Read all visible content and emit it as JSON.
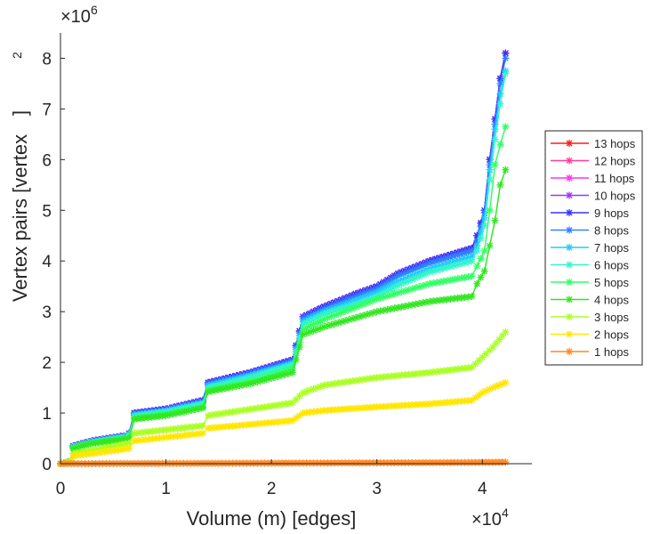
{
  "chart_data": {
    "type": "line",
    "xlabel": "Volume (m) [edges]",
    "ylabel": "Vertex pairs [vertex",
    "ylabel_sup": "2",
    "ylabel_close": "]",
    "x_multiplier": "×10",
    "x_multiplier_exp": "4",
    "y_multiplier": "×10",
    "y_multiplier_exp": "6",
    "xlim": [
      0,
      4.47
    ],
    "ylim": [
      0,
      8.5
    ],
    "xticks": [
      0,
      1,
      2,
      3,
      4
    ],
    "yticks": [
      0,
      1,
      2,
      3,
      4,
      5,
      6,
      7,
      8
    ],
    "legend_position": "right",
    "series": [
      {
        "name": "13 hops",
        "color": "#ff1a1a",
        "points": [
          [
            0,
            0
          ],
          [
            0.1,
            0.05
          ],
          [
            0.12,
            0.35
          ],
          [
            0.3,
            0.45
          ],
          [
            0.6,
            0.55
          ],
          [
            0.65,
            0.6
          ],
          [
            0.7,
            1.0
          ],
          [
            1.0,
            1.08
          ],
          [
            1.35,
            1.25
          ],
          [
            1.4,
            1.6
          ],
          [
            1.8,
            1.8
          ],
          [
            2.2,
            2.05
          ],
          [
            2.3,
            2.9
          ],
          [
            2.5,
            3.1
          ],
          [
            2.8,
            3.35
          ],
          [
            3.0,
            3.5
          ],
          [
            3.2,
            3.75
          ],
          [
            3.5,
            4.0
          ],
          [
            3.9,
            4.25
          ],
          [
            3.95,
            4.5
          ],
          [
            4.02,
            5.0
          ],
          [
            4.07,
            6.0
          ],
          [
            4.12,
            6.8
          ],
          [
            4.17,
            7.6
          ],
          [
            4.22,
            8.1
          ]
        ]
      },
      {
        "name": "12 hops",
        "color": "#ff3d9a",
        "points": [
          [
            0,
            0
          ],
          [
            0.1,
            0.05
          ],
          [
            0.12,
            0.35
          ],
          [
            0.3,
            0.45
          ],
          [
            0.6,
            0.55
          ],
          [
            0.65,
            0.6
          ],
          [
            0.7,
            1.0
          ],
          [
            1.0,
            1.08
          ],
          [
            1.35,
            1.25
          ],
          [
            1.4,
            1.6
          ],
          [
            1.8,
            1.8
          ],
          [
            2.2,
            2.05
          ],
          [
            2.3,
            2.9
          ],
          [
            2.5,
            3.1
          ],
          [
            2.8,
            3.35
          ],
          [
            3.0,
            3.5
          ],
          [
            3.2,
            3.75
          ],
          [
            3.5,
            4.0
          ],
          [
            3.9,
            4.25
          ],
          [
            3.95,
            4.5
          ],
          [
            4.02,
            5.0
          ],
          [
            4.07,
            6.0
          ],
          [
            4.12,
            6.8
          ],
          [
            4.17,
            7.6
          ],
          [
            4.22,
            8.1
          ]
        ]
      },
      {
        "name": "11 hops",
        "color": "#ff33ee",
        "points": [
          [
            0,
            0
          ],
          [
            0.1,
            0.05
          ],
          [
            0.12,
            0.35
          ],
          [
            0.3,
            0.45
          ],
          [
            0.6,
            0.55
          ],
          [
            0.65,
            0.6
          ],
          [
            0.7,
            1.0
          ],
          [
            1.0,
            1.08
          ],
          [
            1.35,
            1.25
          ],
          [
            1.4,
            1.6
          ],
          [
            1.8,
            1.8
          ],
          [
            2.2,
            2.05
          ],
          [
            2.3,
            2.9
          ],
          [
            2.5,
            3.1
          ],
          [
            2.8,
            3.35
          ],
          [
            3.0,
            3.5
          ],
          [
            3.2,
            3.75
          ],
          [
            3.5,
            4.0
          ],
          [
            3.9,
            4.25
          ],
          [
            3.95,
            4.5
          ],
          [
            4.02,
            5.0
          ],
          [
            4.07,
            6.0
          ],
          [
            4.12,
            6.8
          ],
          [
            4.17,
            7.6
          ],
          [
            4.22,
            8.1
          ]
        ]
      },
      {
        "name": "10 hops",
        "color": "#a033ff",
        "points": [
          [
            0,
            0
          ],
          [
            0.1,
            0.05
          ],
          [
            0.12,
            0.35
          ],
          [
            0.3,
            0.45
          ],
          [
            0.6,
            0.55
          ],
          [
            0.65,
            0.6
          ],
          [
            0.7,
            1.0
          ],
          [
            1.0,
            1.08
          ],
          [
            1.35,
            1.25
          ],
          [
            1.4,
            1.6
          ],
          [
            1.8,
            1.8
          ],
          [
            2.2,
            2.05
          ],
          [
            2.3,
            2.9
          ],
          [
            2.5,
            3.1
          ],
          [
            2.8,
            3.35
          ],
          [
            3.0,
            3.5
          ],
          [
            3.2,
            3.75
          ],
          [
            3.5,
            4.0
          ],
          [
            3.9,
            4.25
          ],
          [
            3.95,
            4.5
          ],
          [
            4.02,
            5.0
          ],
          [
            4.07,
            6.0
          ],
          [
            4.12,
            6.8
          ],
          [
            4.17,
            7.6
          ],
          [
            4.22,
            8.1
          ]
        ]
      },
      {
        "name": "9 hops",
        "color": "#3333ff",
        "points": [
          [
            0,
            0
          ],
          [
            0.1,
            0.05
          ],
          [
            0.12,
            0.35
          ],
          [
            0.3,
            0.45
          ],
          [
            0.6,
            0.55
          ],
          [
            0.65,
            0.6
          ],
          [
            0.7,
            1.0
          ],
          [
            1.0,
            1.08
          ],
          [
            1.35,
            1.25
          ],
          [
            1.4,
            1.6
          ],
          [
            1.8,
            1.8
          ],
          [
            2.2,
            2.05
          ],
          [
            2.3,
            2.9
          ],
          [
            2.5,
            3.1
          ],
          [
            2.8,
            3.35
          ],
          [
            3.0,
            3.5
          ],
          [
            3.2,
            3.75
          ],
          [
            3.5,
            4.0
          ],
          [
            3.9,
            4.25
          ],
          [
            3.95,
            4.5
          ],
          [
            4.02,
            5.0
          ],
          [
            4.07,
            6.0
          ],
          [
            4.12,
            6.8
          ],
          [
            4.17,
            7.6
          ],
          [
            4.22,
            8.1
          ]
        ]
      },
      {
        "name": "8 hops",
        "color": "#3380ff",
        "points": [
          [
            0,
            0
          ],
          [
            0.1,
            0.05
          ],
          [
            0.12,
            0.34
          ],
          [
            0.3,
            0.44
          ],
          [
            0.6,
            0.54
          ],
          [
            0.65,
            0.59
          ],
          [
            0.7,
            0.98
          ],
          [
            1.0,
            1.06
          ],
          [
            1.35,
            1.22
          ],
          [
            1.4,
            1.57
          ],
          [
            1.8,
            1.77
          ],
          [
            2.2,
            2.02
          ],
          [
            2.3,
            2.86
          ],
          [
            2.5,
            3.05
          ],
          [
            2.8,
            3.3
          ],
          [
            3.0,
            3.45
          ],
          [
            3.2,
            3.7
          ],
          [
            3.5,
            3.95
          ],
          [
            3.9,
            4.2
          ],
          [
            3.95,
            4.4
          ],
          [
            4.02,
            4.95
          ],
          [
            4.07,
            5.9
          ],
          [
            4.12,
            6.7
          ],
          [
            4.17,
            7.5
          ],
          [
            4.22,
            8.0
          ]
        ]
      },
      {
        "name": "7 hops",
        "color": "#22c8ff",
        "points": [
          [
            0,
            0
          ],
          [
            0.1,
            0.05
          ],
          [
            0.12,
            0.33
          ],
          [
            0.3,
            0.43
          ],
          [
            0.6,
            0.53
          ],
          [
            0.65,
            0.58
          ],
          [
            0.7,
            0.96
          ],
          [
            1.0,
            1.04
          ],
          [
            1.35,
            1.2
          ],
          [
            1.4,
            1.54
          ],
          [
            1.8,
            1.74
          ],
          [
            2.2,
            1.98
          ],
          [
            2.3,
            2.8
          ],
          [
            2.5,
            3.0
          ],
          [
            2.8,
            3.22
          ],
          [
            3.0,
            3.38
          ],
          [
            3.2,
            3.6
          ],
          [
            3.5,
            3.85
          ],
          [
            3.9,
            4.08
          ],
          [
            3.95,
            4.3
          ],
          [
            4.02,
            4.85
          ],
          [
            4.07,
            5.8
          ],
          [
            4.12,
            6.6
          ],
          [
            4.17,
            7.3
          ],
          [
            4.22,
            7.75
          ]
        ]
      },
      {
        "name": "6 hops",
        "color": "#33f5cc",
        "points": [
          [
            0,
            0
          ],
          [
            0.1,
            0.05
          ],
          [
            0.12,
            0.33
          ],
          [
            0.3,
            0.42
          ],
          [
            0.6,
            0.52
          ],
          [
            0.65,
            0.57
          ],
          [
            0.7,
            0.94
          ],
          [
            1.0,
            1.02
          ],
          [
            1.35,
            1.18
          ],
          [
            1.4,
            1.5
          ],
          [
            1.8,
            1.7
          ],
          [
            2.2,
            1.95
          ],
          [
            2.3,
            2.75
          ],
          [
            2.5,
            2.95
          ],
          [
            2.8,
            3.15
          ],
          [
            3.0,
            3.3
          ],
          [
            3.2,
            3.52
          ],
          [
            3.5,
            3.78
          ],
          [
            3.9,
            4.0
          ],
          [
            3.95,
            4.2
          ],
          [
            4.02,
            4.7
          ],
          [
            4.07,
            5.6
          ],
          [
            4.12,
            6.4
          ],
          [
            4.17,
            7.1
          ],
          [
            4.22,
            7.7
          ]
        ]
      },
      {
        "name": "5 hops",
        "color": "#33ff66",
        "points": [
          [
            0,
            0
          ],
          [
            0.1,
            0.05
          ],
          [
            0.12,
            0.32
          ],
          [
            0.3,
            0.41
          ],
          [
            0.6,
            0.5
          ],
          [
            0.65,
            0.55
          ],
          [
            0.7,
            0.9
          ],
          [
            1.0,
            0.98
          ],
          [
            1.35,
            1.12
          ],
          [
            1.4,
            1.45
          ],
          [
            1.8,
            1.62
          ],
          [
            2.2,
            1.88
          ],
          [
            2.3,
            2.65
          ],
          [
            2.5,
            2.85
          ],
          [
            3.0,
            3.25
          ],
          [
            3.5,
            3.55
          ],
          [
            3.9,
            3.7
          ],
          [
            3.95,
            3.9
          ],
          [
            4.02,
            4.2
          ],
          [
            4.07,
            5.0
          ],
          [
            4.12,
            5.9
          ],
          [
            4.17,
            6.3
          ],
          [
            4.22,
            6.65
          ]
        ]
      },
      {
        "name": "4 hops",
        "color": "#33e622",
        "points": [
          [
            0,
            0
          ],
          [
            0.1,
            0.05
          ],
          [
            0.12,
            0.3
          ],
          [
            0.3,
            0.4
          ],
          [
            0.65,
            0.5
          ],
          [
            0.7,
            0.88
          ],
          [
            1.0,
            0.95
          ],
          [
            1.35,
            1.1
          ],
          [
            1.4,
            1.42
          ],
          [
            1.8,
            1.58
          ],
          [
            2.2,
            1.8
          ],
          [
            2.3,
            2.55
          ],
          [
            2.5,
            2.7
          ],
          [
            3.0,
            3.0
          ],
          [
            3.5,
            3.2
          ],
          [
            3.9,
            3.3
          ],
          [
            3.95,
            3.55
          ],
          [
            4.02,
            3.8
          ],
          [
            4.07,
            4.3
          ],
          [
            4.12,
            4.8
          ],
          [
            4.17,
            5.5
          ],
          [
            4.22,
            5.8
          ]
        ]
      },
      {
        "name": "3 hops",
        "color": "#aaff22",
        "points": [
          [
            0,
            0
          ],
          [
            0.1,
            0.04
          ],
          [
            0.12,
            0.2
          ],
          [
            0.65,
            0.4
          ],
          [
            0.7,
            0.6
          ],
          [
            1.35,
            0.75
          ],
          [
            1.4,
            0.95
          ],
          [
            2.2,
            1.2
          ],
          [
            2.3,
            1.4
          ],
          [
            2.5,
            1.55
          ],
          [
            3.0,
            1.7
          ],
          [
            3.5,
            1.8
          ],
          [
            3.9,
            1.9
          ],
          [
            4.0,
            2.1
          ],
          [
            4.1,
            2.3
          ],
          [
            4.22,
            2.6
          ]
        ]
      },
      {
        "name": "2 hops",
        "color": "#ffe600",
        "points": [
          [
            0,
            0
          ],
          [
            0.1,
            0.03
          ],
          [
            0.12,
            0.15
          ],
          [
            0.65,
            0.3
          ],
          [
            0.7,
            0.45
          ],
          [
            1.35,
            0.6
          ],
          [
            1.4,
            0.7
          ],
          [
            2.2,
            0.85
          ],
          [
            2.3,
            1.0
          ],
          [
            2.5,
            1.05
          ],
          [
            3.0,
            1.12
          ],
          [
            3.5,
            1.18
          ],
          [
            3.9,
            1.25
          ],
          [
            4.0,
            1.4
          ],
          [
            4.1,
            1.5
          ],
          [
            4.22,
            1.6
          ]
        ]
      },
      {
        "name": "1 hops",
        "color": "#ff8822",
        "points": [
          [
            0,
            0
          ],
          [
            0.5,
            0.003
          ],
          [
            1.0,
            0.005
          ],
          [
            1.5,
            0.007
          ],
          [
            2.0,
            0.01
          ],
          [
            2.5,
            0.013
          ],
          [
            3.0,
            0.016
          ],
          [
            3.5,
            0.02
          ],
          [
            4.0,
            0.025
          ],
          [
            4.22,
            0.03
          ]
        ]
      }
    ]
  }
}
